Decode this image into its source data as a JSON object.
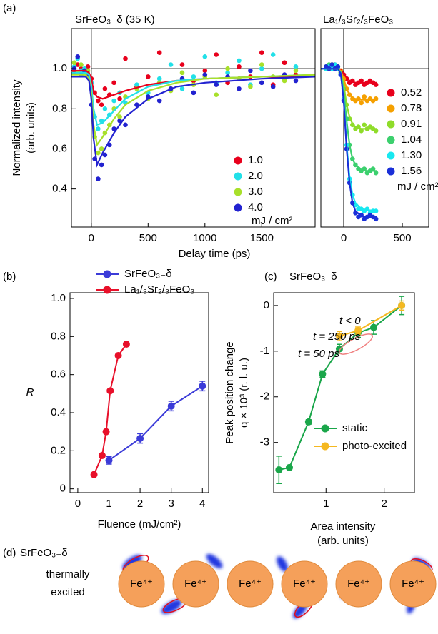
{
  "chart_data": [
    {
      "type": "scatter",
      "label": "(a)",
      "title": "SrFeO₃₋δ (35 K)",
      "ylabel": [
        "Normalized intensity",
        "(arb. units)"
      ],
      "xlabel": "Delay time (ps)",
      "xlim": [
        -175,
        1970
      ],
      "ylim": [
        0.21,
        1.2
      ],
      "xticks": [
        0,
        500,
        1000,
        1500
      ],
      "yticks": [
        0.4,
        0.6,
        0.8,
        {
          "value": 1,
          "label": "1.0"
        }
      ],
      "hline": 1,
      "vline": 0,
      "x": [
        -150,
        -120,
        -90,
        -60,
        -30,
        0,
        30,
        60,
        90,
        120,
        160,
        200,
        250,
        300,
        400,
        500,
        600,
        700,
        800,
        900,
        1000,
        1100,
        1200,
        1300,
        1400,
        1500,
        1600,
        1700,
        1800
      ],
      "series": [
        {
          "name": "1.0",
          "color": "#e8001c",
          "values": [
            0.98,
            1.02,
            1.0,
            0.97,
            1.01,
            0.95,
            0.88,
            0.84,
            0.82,
            0.9,
            0.87,
            0.93,
            0.85,
            1.05,
            0.91,
            0.96,
            1.08,
            0.9,
            1.02,
            0.94,
            0.99,
            1.07,
            0.93,
            1.01,
            0.96,
            1.08,
            0.92,
            1.03,
            0.97
          ]
        },
        {
          "name": "2.0",
          "color": "#22e0e8",
          "values": [
            1.01,
            1.05,
            0.99,
            1.0,
            0.97,
            0.93,
            0.76,
            0.7,
            0.74,
            0.8,
            0.77,
            0.84,
            0.88,
            0.83,
            0.92,
            0.88,
            0.95,
            1.02,
            0.9,
            0.96,
            1.06,
            0.93,
            0.98,
            1.04,
            0.92,
            1.0,
            1.07,
            0.95,
            1.01
          ]
        },
        {
          "name": "3.0",
          "color": "#a8e02a",
          "values": [
            1.03,
            0.98,
            1.02,
            0.97,
            0.99,
            0.9,
            0.66,
            0.58,
            0.6,
            0.68,
            0.72,
            0.8,
            0.76,
            0.86,
            0.9,
            0.85,
            0.93,
            0.89,
            0.98,
            0.92,
            0.96,
            0.87,
            1.0,
            0.95,
            0.91,
            1.02,
            0.96,
            0.94,
            0.99
          ]
        },
        {
          "name": "4.0",
          "color": "#2222d0",
          "values": [
            1.0,
            1.06,
            0.97,
            0.99,
            0.96,
            0.82,
            0.55,
            0.45,
            0.52,
            0.57,
            0.62,
            0.7,
            0.74,
            0.72,
            0.82,
            0.86,
            0.84,
            0.9,
            0.95,
            0.88,
            0.97,
            0.92,
            0.96,
            0.9,
            0.99,
            0.93,
            0.91,
            0.97,
            0.94
          ]
        }
      ],
      "fits": [
        {
          "color": "#e8001c",
          "x": [
            -175,
            -100,
            -50,
            -20,
            0,
            20,
            50,
            100,
            200,
            300,
            500,
            750,
            1000,
            1500,
            1970
          ],
          "values": [
            0.99,
            0.99,
            0.99,
            0.98,
            0.95,
            0.89,
            0.86,
            0.85,
            0.87,
            0.89,
            0.92,
            0.94,
            0.95,
            0.96,
            0.96
          ]
        },
        {
          "color": "#22e0e8",
          "x": [
            -175,
            -100,
            -50,
            -20,
            0,
            20,
            50,
            100,
            200,
            300,
            500,
            750,
            1000,
            1500,
            1970
          ],
          "values": [
            0.98,
            0.98,
            0.98,
            0.97,
            0.92,
            0.8,
            0.72,
            0.73,
            0.79,
            0.85,
            0.91,
            0.94,
            0.95,
            0.96,
            0.97
          ]
        },
        {
          "color": "#a8e02a",
          "x": [
            -175,
            -100,
            -50,
            -20,
            0,
            20,
            50,
            100,
            200,
            300,
            500,
            750,
            1000,
            1500,
            1970
          ],
          "values": [
            0.97,
            0.97,
            0.97,
            0.95,
            0.88,
            0.72,
            0.62,
            0.66,
            0.75,
            0.82,
            0.89,
            0.93,
            0.95,
            0.96,
            0.97
          ]
        },
        {
          "color": "#2222d0",
          "x": [
            -175,
            -100,
            -50,
            -20,
            0,
            20,
            50,
            100,
            200,
            300,
            500,
            750,
            1000,
            1500,
            1970
          ],
          "values": [
            0.96,
            0.96,
            0.96,
            0.94,
            0.85,
            0.65,
            0.52,
            0.58,
            0.68,
            0.76,
            0.85,
            0.91,
            0.93,
            0.95,
            0.96
          ]
        }
      ],
      "legend_note": "mJ / cm²"
    },
    {
      "type": "scatter",
      "title": "La₁/₃Sr₂/₃FeO₃",
      "xlim": [
        -195,
        725
      ],
      "ylim": [
        0.21,
        1.2
      ],
      "xticks": [
        0,
        500
      ],
      "hline": 1,
      "vline": 0,
      "x": [
        -150,
        -125,
        -100,
        -75,
        -50,
        -25,
        0,
        25,
        50,
        75,
        100,
        125,
        150,
        175,
        200,
        225,
        250,
        275
      ],
      "series": [
        {
          "name": "0.52",
          "color": "#e8001c",
          "values": [
            1.0,
            1.01,
            1.0,
            1.02,
            1.0,
            0.99,
            0.97,
            0.95,
            0.93,
            0.94,
            0.92,
            0.93,
            0.94,
            0.92,
            0.93,
            0.94,
            0.93,
            0.92
          ]
        },
        {
          "name": "0.78",
          "color": "#f5a000",
          "values": [
            1.0,
            1.01,
            1.02,
            1.0,
            1.01,
            0.99,
            0.95,
            0.9,
            0.87,
            0.85,
            0.84,
            0.85,
            0.83,
            0.86,
            0.84,
            0.85,
            0.84,
            0.85
          ]
        },
        {
          "name": "0.91",
          "color": "#8fdc2a",
          "values": [
            1.01,
            1.0,
            1.02,
            1.0,
            1.0,
            0.98,
            0.92,
            0.82,
            0.75,
            0.72,
            0.7,
            0.71,
            0.69,
            0.72,
            0.7,
            0.71,
            0.7,
            0.69
          ]
        },
        {
          "name": "1.04",
          "color": "#3cd06e",
          "values": [
            1.0,
            1.02,
            1.01,
            1.0,
            1.01,
            0.98,
            0.9,
            0.75,
            0.62,
            0.55,
            0.52,
            0.5,
            0.49,
            0.5,
            0.48,
            0.49,
            0.5,
            0.48
          ]
        },
        {
          "name": "1.30",
          "color": "#18e8f0",
          "values": [
            1.0,
            1.01,
            1.0,
            1.02,
            1.0,
            0.97,
            0.85,
            0.62,
            0.45,
            0.37,
            0.32,
            0.3,
            0.3,
            0.29,
            0.3,
            0.28,
            0.29,
            0.29
          ]
        },
        {
          "name": "1.56",
          "color": "#1a2fd8",
          "values": [
            1.01,
            1.0,
            1.02,
            1.0,
            1.01,
            0.97,
            0.84,
            0.6,
            0.43,
            0.33,
            0.28,
            0.26,
            0.27,
            0.25,
            0.26,
            0.27,
            0.26,
            0.25
          ]
        }
      ],
      "fits": [
        {
          "color": "#e8001c",
          "x": [
            -195,
            -50,
            -25,
            0,
            25,
            50,
            75,
            100,
            150,
            200,
            280
          ],
          "values": [
            1,
            1,
            0.995,
            0.975,
            0.955,
            0.94,
            0.935,
            0.93,
            0.93,
            0.93,
            0.93
          ]
        },
        {
          "color": "#f5a000",
          "x": [
            -195,
            -50,
            -25,
            0,
            25,
            50,
            75,
            100,
            150,
            200,
            280
          ],
          "values": [
            1,
            1,
            0.99,
            0.95,
            0.9,
            0.87,
            0.855,
            0.85,
            0.845,
            0.845,
            0.845
          ]
        },
        {
          "color": "#8fdc2a",
          "x": [
            -195,
            -50,
            -25,
            0,
            25,
            50,
            75,
            100,
            150,
            200,
            280
          ],
          "values": [
            1,
            1,
            0.985,
            0.92,
            0.82,
            0.76,
            0.725,
            0.71,
            0.7,
            0.7,
            0.7
          ]
        },
        {
          "color": "#3cd06e",
          "x": [
            -195,
            -50,
            -25,
            0,
            25,
            50,
            75,
            100,
            150,
            200,
            280
          ],
          "values": [
            1,
            1,
            0.98,
            0.89,
            0.74,
            0.62,
            0.55,
            0.52,
            0.495,
            0.49,
            0.49
          ]
        },
        {
          "color": "#18e8f0",
          "x": [
            -195,
            -50,
            -25,
            0,
            25,
            50,
            75,
            100,
            150,
            200,
            280
          ],
          "values": [
            1,
            1,
            0.975,
            0.85,
            0.62,
            0.46,
            0.37,
            0.33,
            0.3,
            0.295,
            0.29
          ]
        },
        {
          "color": "#1a2fd8",
          "x": [
            -195,
            -50,
            -25,
            0,
            25,
            50,
            75,
            100,
            150,
            200,
            280
          ],
          "values": [
            1,
            1,
            0.975,
            0.84,
            0.6,
            0.43,
            0.33,
            0.29,
            0.265,
            0.26,
            0.26
          ]
        }
      ],
      "legend_note": "mJ / cm²"
    },
    {
      "type": "line",
      "label": "(b)",
      "ylabel": [
        "R"
      ],
      "xlabel": "Fluence (mJ/cm²)",
      "xlim": [
        -0.25,
        4.2
      ],
      "ylim": [
        -0.02,
        1.03
      ],
      "xticks": [
        0,
        1,
        2,
        3,
        4
      ],
      "yticks": [
        0,
        0.2,
        0.4,
        0.6,
        0.8,
        {
          "value": 1,
          "label": "1.0"
        }
      ],
      "series": [
        {
          "name": "SrFeO₃₋δ",
          "color": "#3b3bd8",
          "x": [
            1,
            2,
            3,
            4
          ],
          "values": [
            0.15,
            0.265,
            0.435,
            0.54
          ],
          "errors": [
            0.02,
            0.025,
            0.025,
            0.025
          ]
        },
        {
          "name": "La₁/₃Sr₂/₃FeO₃",
          "color": "#e8102a",
          "x": [
            0.52,
            0.78,
            0.91,
            1.04,
            1.3,
            1.56
          ],
          "values": [
            0.075,
            0.175,
            0.3,
            0.515,
            0.7,
            0.76
          ]
        }
      ]
    },
    {
      "type": "line",
      "label": "(c)",
      "title": "SrFeO₃₋δ",
      "ylabel": [
        "Peak position change",
        "q × 10³ (r. l. u.)"
      ],
      "xlabel": [
        "Area intensity",
        "(arb. units)"
      ],
      "xlim": [
        0.1,
        2.52
      ],
      "ylim": [
        -4.1,
        0.28
      ],
      "xticks": [
        1,
        2
      ],
      "yticks": [
        0,
        -1,
        -2,
        -3
      ],
      "series": [
        {
          "name": "static",
          "color": "#1aa64a",
          "x": [
            0.19,
            0.37,
            0.7,
            0.94,
            1.23,
            1.55,
            1.82,
            2.3
          ],
          "values": [
            -3.6,
            -3.55,
            -2.55,
            -1.5,
            -0.95,
            -0.6,
            -0.48,
            0.0
          ],
          "errors": [
            0.3,
            0.05,
            0.05,
            0.07,
            0.1,
            0.1,
            0.15,
            0.2
          ]
        },
        {
          "name": "photo-excited",
          "color": "#f5b820",
          "x": [
            1.23,
            1.55,
            2.3
          ],
          "values": [
            -0.67,
            -0.55,
            0.0
          ],
          "errors": [
            0.1,
            0.08,
            0.1
          ]
        }
      ],
      "annotations": [
        "t < 0",
        "t = 250 ps",
        "t = 50 ps"
      ]
    }
  ],
  "diagram": {
    "label": "(d)",
    "title": "SrFeO₃₋δ",
    "text": [
      "thermally",
      "excited"
    ],
    "atoms": [
      "Fe⁴⁺",
      "Fe⁴⁺",
      "Fe⁴⁺",
      "Fe⁴⁺",
      "Fe⁴⁺",
      "Fe⁴⁺"
    ]
  }
}
